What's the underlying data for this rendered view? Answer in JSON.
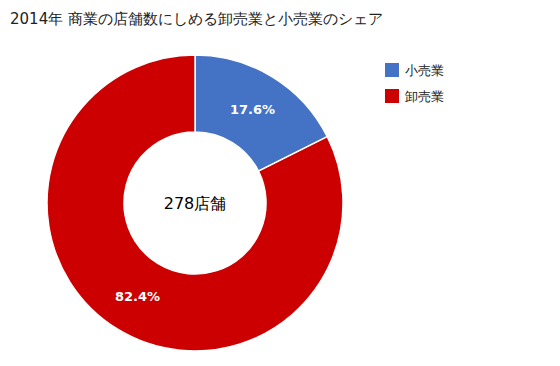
{
  "chart_data": {
    "type": "donut",
    "title": "2014年 商業の店舗数にしめる卸売業と小売業のシェア",
    "categories": [
      "小売業",
      "卸売業"
    ],
    "values": [
      17.6,
      82.4
    ],
    "value_labels": [
      "17.6%",
      "82.4%"
    ],
    "colors": [
      "#4472C4",
      "#CC0000"
    ],
    "annotations": [
      "278店舗"
    ],
    "data_labels": true,
    "legend": "right"
  }
}
